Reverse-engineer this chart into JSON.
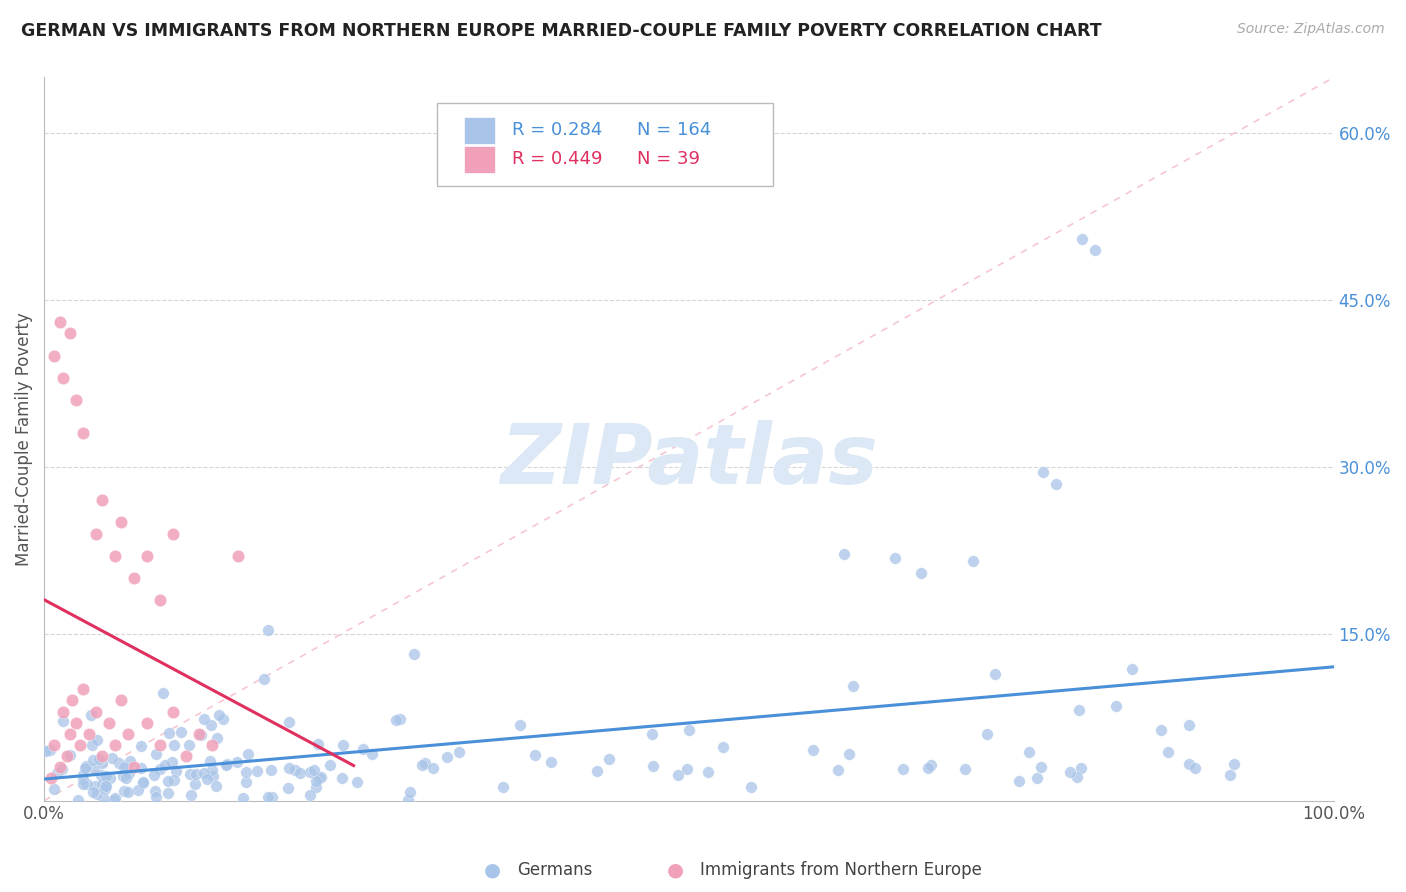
{
  "title": "GERMAN VS IMMIGRANTS FROM NORTHERN EUROPE MARRIED-COUPLE FAMILY POVERTY CORRELATION CHART",
  "source": "Source: ZipAtlas.com",
  "ylabel": "Married-Couple Family Poverty",
  "xlim": [
    0,
    1
  ],
  "ylim": [
    0,
    0.65
  ],
  "ytick_vals": [
    0.15,
    0.3,
    0.45,
    0.6
  ],
  "ytick_labels": [
    "15.0%",
    "30.0%",
    "45.0%",
    "60.0%"
  ],
  "xtick_vals": [
    0.0,
    1.0
  ],
  "xtick_labels": [
    "0.0%",
    "100.0%"
  ],
  "german_color": "#a8c4e8",
  "immigrant_color": "#f0a0b8",
  "german_line_color": "#4a90d9",
  "immigrant_line_color": "#e03060",
  "german_R": 0.284,
  "german_N": 164,
  "immigrant_R": 0.449,
  "immigrant_N": 39,
  "watermark": "ZIPatlas",
  "watermark_color": "#dce8f5",
  "legend_labels": [
    "Germans",
    "Immigrants from Northern Europe"
  ],
  "background_color": "#ffffff",
  "grid_color": "#cccccc",
  "diag_color": "#f5c0cc"
}
